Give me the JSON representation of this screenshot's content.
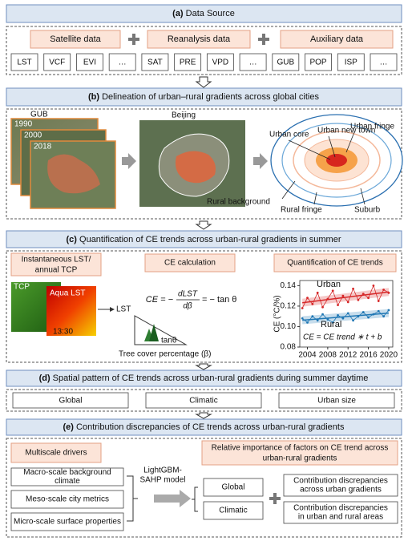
{
  "a": {
    "label": "(a)",
    "title": "Data Source",
    "groups": [
      "Satellite data",
      "Reanalysis data",
      "Auxiliary data"
    ],
    "variables": [
      "LST",
      "VCF",
      "EVI",
      "…",
      "SAT",
      "PRE",
      "VPD",
      "…",
      "GUB",
      "POP",
      "ISP",
      "…"
    ]
  },
  "b": {
    "label": "(b)",
    "title": "Delineation of urban–rural gradients across global cities",
    "gub": {
      "title": "GUB",
      "years": [
        "1990",
        "2000",
        "2018"
      ]
    },
    "beijing": "Beijing",
    "zones": {
      "urban_new_town": "Urban new town",
      "urban_fringe": "Urban fringe",
      "urban_core": "Urban core",
      "rural_background": "Rural background",
      "rural_fringe": "Rural fringe",
      "suburb": "Suburb"
    }
  },
  "c": {
    "label": "(c)",
    "title": "Quantification of CE trends across urban-rural gradients in summer",
    "steps": [
      [
        "Instantaneous LST/",
        "annual TCP"
      ],
      "CE calculation",
      "Quantification of CE trends"
    ],
    "tcp": "TCP",
    "aqua": "Aqua LST",
    "time": "13:30",
    "lst": "LST",
    "formula": {
      "lhs": "CE = −",
      "numerator": "dLST",
      "denominator": "dβ",
      "rhs": "= − tan θ"
    },
    "tan": "tanθ",
    "tree_cover": "Tree cover percentage (β)",
    "trend_chart": {
      "ylabel": "CE (°C/%)",
      "equation": "CE = CE trend ∗ t + b",
      "xlim": [
        2002.5,
        2020.8
      ],
      "ylim": [
        0.08,
        0.145
      ],
      "xticks": [
        2004,
        2008,
        2012,
        2016,
        2020
      ],
      "yticks": [
        {
          "value": 0.08,
          "label": "0.08"
        },
        {
          "value": 0.1,
          "label": "0.10"
        },
        {
          "value": 0.12,
          "label": "0.12"
        },
        {
          "value": 0.14,
          "label": "0.14"
        }
      ],
      "x": [
        2003,
        2004,
        2005,
        2006,
        2007,
        2008,
        2009,
        2010,
        2011,
        2012,
        2013,
        2014,
        2015,
        2016,
        2017,
        2018,
        2019,
        2020
      ],
      "series": [
        {
          "name": "Urban",
          "color": "#d62728",
          "values": [
            0.118,
            0.128,
            0.122,
            0.133,
            0.119,
            0.127,
            0.135,
            0.121,
            0.13,
            0.124,
            0.137,
            0.126,
            0.132,
            0.128,
            0.14,
            0.125,
            0.136,
            0.133
          ]
        },
        {
          "name": "Rural",
          "color": "#1f77b4",
          "values": [
            0.108,
            0.104,
            0.11,
            0.106,
            0.112,
            0.107,
            0.104,
            0.111,
            0.108,
            0.113,
            0.106,
            0.11,
            0.114,
            0.109,
            0.112,
            0.115,
            0.11,
            0.116
          ]
        }
      ]
    }
  },
  "d": {
    "label": "(d)",
    "title": "Spatial pattern of CE trends across urban-rural gradients during summer daytime",
    "items": [
      "Global",
      "Climatic",
      "Urban size"
    ]
  },
  "e": {
    "label": "(e)",
    "title": "Contribution discrepancies of CE trends across urban-rural gradients",
    "drivers_title": "Multiscale drivers",
    "scales": [
      [
        "Macro-scale background",
        "climate"
      ],
      [
        "Meso-scale city metrics"
      ],
      [
        "Micro-scale surface properties"
      ]
    ],
    "model": [
      "LightGBM-",
      "SAHP model"
    ],
    "importance_title": [
      "Relative importance of factors on CE trend across",
      "urban-rural gradients"
    ],
    "groups": [
      "Global",
      "Climatic"
    ],
    "discrepancies": [
      [
        "Contribution discrepancies",
        "across urban gradients"
      ],
      [
        "Contribution discrepancies",
        "in urban and rural areas"
      ]
    ]
  }
}
